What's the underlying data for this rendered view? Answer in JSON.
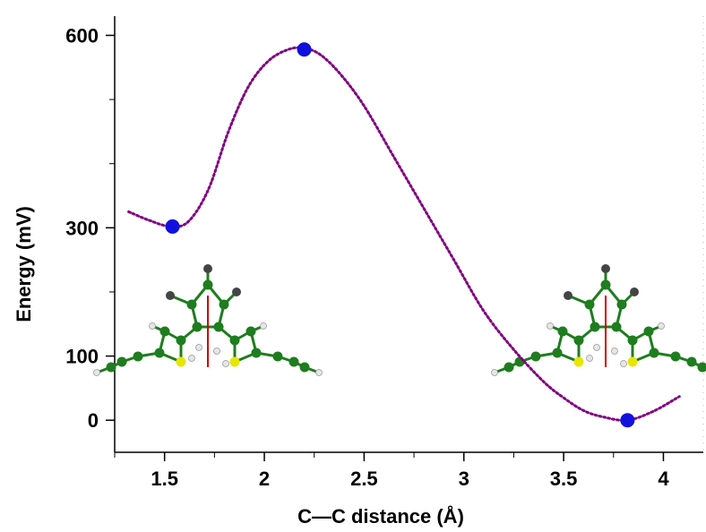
{
  "chart_data": {
    "type": "line",
    "xlabel": "C—C distance (Å)",
    "ylabel": "Energy (mV)",
    "xlim": [
      1.25,
      4.2
    ],
    "ylim": [
      -50,
      630
    ],
    "x_ticks": [
      {
        "value": 1.5,
        "label": "1.5"
      },
      {
        "value": 2,
        "label": "2"
      },
      {
        "value": 2.5,
        "label": "2.5"
      },
      {
        "value": 3,
        "label": "3"
      },
      {
        "value": 3.5,
        "label": "3.5"
      },
      {
        "value": 4,
        "label": "4"
      }
    ],
    "y_ticks": [
      {
        "value": 0,
        "label": "0"
      },
      {
        "value": 100,
        "label": "100"
      },
      {
        "value": 300,
        "label": "300"
      },
      {
        "value": 600,
        "label": "600"
      }
    ],
    "y_minor_ticks": [
      200,
      400,
      500
    ],
    "grid": false,
    "series": [
      {
        "style": "dotted",
        "color": "#800080",
        "x": [
          1.32,
          1.42,
          1.53,
          1.62,
          1.72,
          1.82,
          1.92,
          2.02,
          2.12,
          2.2,
          2.28,
          2.38,
          2.5,
          2.65,
          2.8,
          2.95,
          3.1,
          3.25,
          3.4,
          3.5,
          3.6,
          3.7,
          3.82,
          3.95,
          4.08
        ],
        "y": [
          325,
          312,
          302,
          310,
          360,
          450,
          520,
          560,
          578,
          580,
          570,
          540,
          490,
          410,
          330,
          250,
          170,
          110,
          60,
          35,
          15,
          5,
          0,
          14,
          37
        ]
      }
    ],
    "points": [
      {
        "x": 1.54,
        "y": 302,
        "color": "#1111dd"
      },
      {
        "x": 2.2,
        "y": 578,
        "color": "#1111dd"
      },
      {
        "x": 3.82,
        "y": 0,
        "color": "#1111dd"
      }
    ]
  },
  "colors": {
    "molecule_carbon": "#1e7d1e",
    "molecule_hydrogen": "#e6e6e6",
    "molecule_sulfur": "#e6e600",
    "molecule_methyl": "#444444",
    "bond_highlight": "#cc0000"
  }
}
